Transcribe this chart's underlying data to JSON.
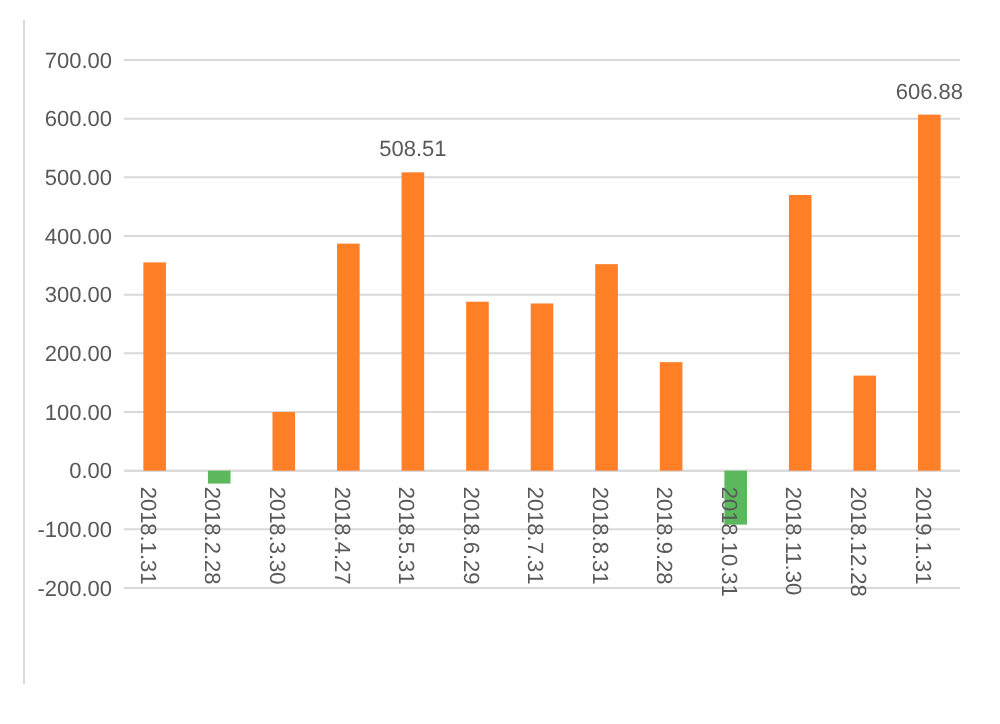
{
  "chart_data": {
    "type": "bar",
    "categories": [
      "2018.1.31",
      "2018.2.28",
      "2018.3.30",
      "2018.4.27",
      "2018.5.31",
      "2018.6.29",
      "2018.7.31",
      "2018.8.31",
      "2018.9.28",
      "2018.10.31",
      "2018.11.30",
      "2018.12.28",
      "2019.1.31"
    ],
    "values": [
      355,
      -22,
      100,
      387,
      508.51,
      288,
      285,
      352,
      185,
      -92,
      470,
      162,
      606.88
    ],
    "colors": [
      "#ff7f27",
      "#5cb85c",
      "#ff7f27",
      "#ff7f27",
      "#ff7f27",
      "#ff7f27",
      "#ff7f27",
      "#ff7f27",
      "#ff7f27",
      "#5cb85c",
      "#ff7f27",
      "#ff7f27",
      "#ff7f27"
    ],
    "value_labels": [
      null,
      null,
      null,
      null,
      "508.51",
      null,
      null,
      null,
      null,
      null,
      null,
      null,
      "606.88"
    ],
    "ylim": [
      -200,
      700
    ],
    "yticks": [
      {
        "value": -200,
        "label": "-200.00"
      },
      {
        "value": -100,
        "label": "-100.00"
      },
      {
        "value": 0,
        "label": "0.00"
      },
      {
        "value": 100,
        "label": "100.00"
      },
      {
        "value": 200,
        "label": "200.00"
      },
      {
        "value": 300,
        "label": "300.00"
      },
      {
        "value": 400,
        "label": "400.00"
      },
      {
        "value": 500,
        "label": "500.00"
      },
      {
        "value": 600,
        "label": "600.00"
      },
      {
        "value": 700,
        "label": "700.00"
      }
    ],
    "grid": "y"
  }
}
